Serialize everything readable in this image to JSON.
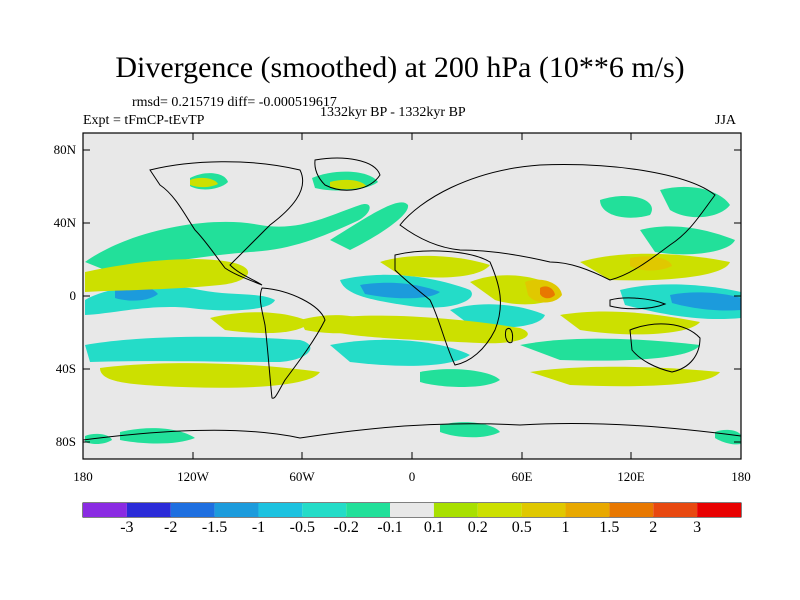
{
  "title": "Divergence (smoothed) at 200 hPa (10**6 m/s)",
  "stats": "rmsd= 0.215719 diff= -0.000519617",
  "experiment": "Expt = tFmCP-tEvTP",
  "period": "1332kyr BP - 1332kyr BP",
  "season": "JJA",
  "y_axis_labels": [
    "80N",
    "40N",
    "0",
    "40S",
    "80S"
  ],
  "x_axis_labels": [
    "180",
    "120W",
    "60W",
    "0",
    "60E",
    "120E",
    "180"
  ],
  "colorbar": {
    "labels": [
      "-3",
      "-2",
      "-1.5",
      "-1",
      "-0.5",
      "-0.2",
      "-0.1",
      "0.1",
      "0.2",
      "0.5",
      "1",
      "1.5",
      "2",
      "3"
    ],
    "colors": [
      "#8a2be2",
      "#2b2bd8",
      "#1e6fe0",
      "#1c9bdc",
      "#1cc2e0",
      "#24dcc8",
      "#22e09a",
      "#e8e8e8",
      "#a8e000",
      "#cce000",
      "#e0c800",
      "#e8a800",
      "#e87800",
      "#e84810",
      "#e80000"
    ]
  },
  "colors": {
    "background": "#e8e8e8",
    "negative_light": "#22e09a",
    "negative_mid": "#24dcc8",
    "negative_strong": "#1c9bdc",
    "positive_light": "#a8e000",
    "positive_mid": "#cce000",
    "positive_strong": "#e0c800",
    "positive_peak": "#e87800"
  }
}
